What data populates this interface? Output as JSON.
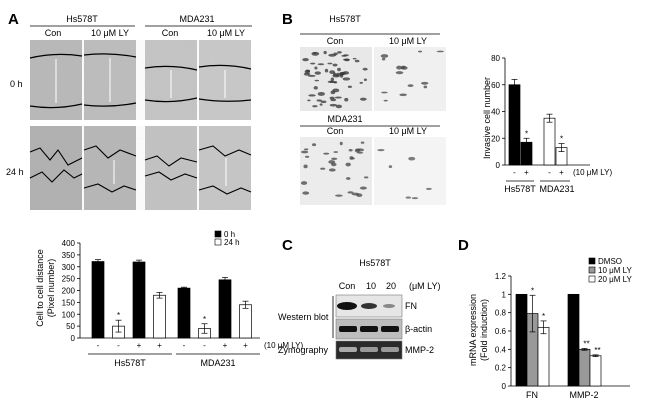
{
  "panels": {
    "A": {
      "letter": "A",
      "cells": [
        "Hs578T",
        "MDA231"
      ],
      "columns": [
        "Con",
        "10 μM LY",
        "Con",
        "10 μM LY"
      ],
      "times": [
        "0 h",
        "24 h"
      ],
      "chart_data": {
        "type": "bar",
        "ylabel": "Cell to cell distance\n(Pixel number)",
        "ylim": [
          0,
          400
        ],
        "yticks": [
          0,
          50,
          100,
          150,
          200,
          250,
          300,
          350,
          400
        ],
        "legend": [
          "0 h",
          "24 h"
        ],
        "legend_placement": "top-right",
        "groups": [
          "Hs578T",
          "MDA231"
        ],
        "series": [
          {
            "name": "0 h",
            "color": "#000000",
            "values": [
              322,
              320,
              210,
              245
            ],
            "errors": [
              8,
              8,
              4,
              10
            ]
          },
          {
            "name": "24 h",
            "color": "#ffffff",
            "values": [
              50,
              180,
              40,
              140
            ],
            "errors": [
              25,
              12,
              20,
              15
            ]
          }
        ],
        "bar_order": [
          [
            "0h",
            0
          ],
          [
            "24h",
            0
          ],
          [
            "0h",
            1
          ],
          [
            "24h",
            1
          ],
          [
            "0h",
            2
          ],
          [
            "24h",
            2
          ],
          [
            "0h",
            3
          ],
          [
            "24h",
            3
          ]
        ],
        "sign_row": [
          "-",
          "-",
          "+",
          "+",
          "-",
          "-",
          "+",
          "+"
        ],
        "treatment": "(10 μM LY)",
        "stars": [
          1,
          5
        ]
      }
    },
    "B": {
      "letter": "B",
      "cells": [
        "Hs578T",
        "MDA231"
      ],
      "columns": [
        "Con",
        "10 μM LY"
      ],
      "chart_data": {
        "type": "bar",
        "ylabel": "Invasive cell number",
        "ylim": [
          0,
          80
        ],
        "yticks": [
          0,
          20,
          40,
          60,
          80
        ],
        "groups": [
          "Hs578T",
          "MDA231"
        ],
        "values": [
          60,
          17,
          35,
          13
        ],
        "errors": [
          4,
          3,
          3,
          3
        ],
        "colors": [
          "#000000",
          "#000000",
          "#ffffff",
          "#ffffff"
        ],
        "sign_row": [
          "-",
          "+",
          "-",
          "+"
        ],
        "treatment": "(10 μM LY)",
        "stars": [
          1,
          3
        ]
      }
    },
    "C": {
      "letter": "C",
      "cell": "Hs578T",
      "doses": [
        "Con",
        "10",
        "20"
      ],
      "unit": "(μM LY)",
      "western_blot": "Western blot",
      "zymography": "Zymography",
      "bands": [
        "FN",
        "β-actin",
        "MMP-2"
      ]
    },
    "D": {
      "letter": "D",
      "chart_data": {
        "type": "bar",
        "ylabel": "mRNA expression\n(Fold induction)",
        "ylim": [
          0,
          1.2
        ],
        "yticks": [
          "0",
          "0.2",
          "0.4",
          "0.6",
          "0.8",
          "1",
          "1.2"
        ],
        "categories": [
          "FN",
          "MMP-2"
        ],
        "legend_placement": "top-right",
        "series": [
          {
            "name": "DMSO",
            "color": "#000000",
            "values": [
              1.0,
              1.0
            ],
            "errors": [
              0,
              0
            ]
          },
          {
            "name": "10 μM LY",
            "color": "#999999",
            "values": [
              0.79,
              0.4
            ],
            "errors": [
              0.2,
              0.01
            ]
          },
          {
            "name": "20 μM LY",
            "color": "#ffffff",
            "values": [
              0.64,
              0.33
            ],
            "errors": [
              0.07,
              0.01
            ]
          }
        ],
        "stars": [
          [
            "*",
            "*"
          ],
          [
            "**",
            "**"
          ]
        ]
      }
    }
  }
}
